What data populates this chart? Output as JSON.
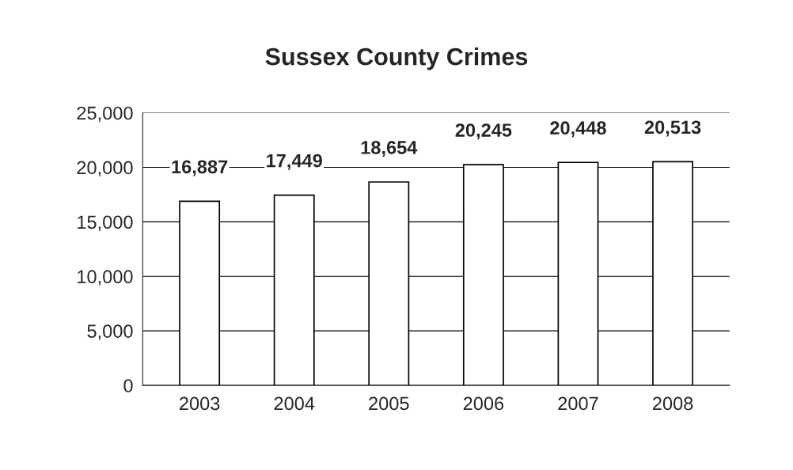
{
  "chart_data": {
    "type": "bar",
    "title": "Sussex County Crimes",
    "categories": [
      "2003",
      "2004",
      "2005",
      "2006",
      "2007",
      "2008"
    ],
    "values": [
      16887,
      17449,
      18654,
      20245,
      20448,
      20513
    ],
    "value_labels": [
      "16,887",
      "17,449",
      "18,654",
      "20,245",
      "20,448",
      "20,513"
    ],
    "color": "#ffffff",
    "ylim": [
      0,
      25000
    ],
    "yticks": [
      0,
      {
        "value": 5000,
        "label": "5,000"
      },
      {
        "value": 10000,
        "label": "10,000"
      },
      {
        "value": 15000,
        "label": "15,000"
      },
      {
        "value": 20000,
        "label": "20,000"
      },
      {
        "value": 25000,
        "label": "25,000"
      }
    ],
    "grid": "y",
    "legend": false
  }
}
